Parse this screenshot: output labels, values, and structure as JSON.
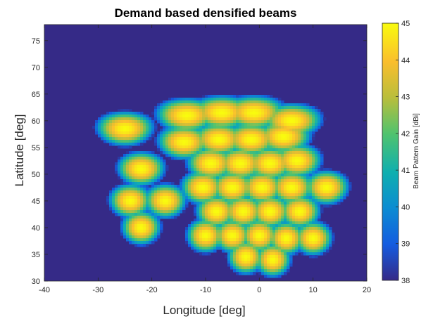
{
  "chart_data": {
    "type": "heatmap",
    "title": "Demand based densified beams",
    "xlabel": "Longitude [deg]",
    "ylabel": "Latitude [deg]",
    "xlim": [
      -40,
      20
    ],
    "ylim": [
      30,
      78
    ],
    "xticks": [
      -40,
      -30,
      -20,
      -10,
      0,
      10,
      20
    ],
    "yticks": [
      30,
      35,
      40,
      45,
      50,
      55,
      60,
      65,
      70,
      75
    ],
    "colorbar": {
      "label": "Beam Pattern Gain [dBi]",
      "range": [
        38,
        45
      ],
      "ticks": [
        38,
        39,
        40,
        41,
        42,
        43,
        44,
        45
      ],
      "colormap": "parula"
    },
    "background_value_dBi": 38,
    "beams": [
      {
        "lon": -2.5,
        "lat": 34.5,
        "peak_dBi": 45
      },
      {
        "lon": 2.5,
        "lat": 34.0,
        "peak_dBi": 45
      },
      {
        "lon": -10.0,
        "lat": 38.5,
        "peak_dBi": 45
      },
      {
        "lon": -5.0,
        "lat": 38.5,
        "peak_dBi": 45
      },
      {
        "lon": 0.0,
        "lat": 38.5,
        "peak_dBi": 45
      },
      {
        "lon": 5.0,
        "lat": 38.0,
        "peak_dBi": 45
      },
      {
        "lon": 10.0,
        "lat": 38.0,
        "peak_dBi": 45
      },
      {
        "lon": -22.0,
        "lat": 40.0,
        "peak_dBi": 45
      },
      {
        "lon": -8.0,
        "lat": 43.0,
        "peak_dBi": 45
      },
      {
        "lon": -3.0,
        "lat": 43.0,
        "peak_dBi": 45
      },
      {
        "lon": 2.0,
        "lat": 43.0,
        "peak_dBi": 45
      },
      {
        "lon": 7.5,
        "lat": 43.0,
        "peak_dBi": 45
      },
      {
        "lon": -24.0,
        "lat": 45.0,
        "peak_dBi": 45
      },
      {
        "lon": -17.5,
        "lat": 45.0,
        "peak_dBi": 45
      },
      {
        "lon": -10.5,
        "lat": 47.5,
        "peak_dBi": 45
      },
      {
        "lon": -5.0,
        "lat": 47.5,
        "peak_dBi": 45
      },
      {
        "lon": 0.5,
        "lat": 47.5,
        "peak_dBi": 45
      },
      {
        "lon": 6.0,
        "lat": 47.5,
        "peak_dBi": 45
      },
      {
        "lon": 12.5,
        "lat": 47.5,
        "peak_dBi": 45
      },
      {
        "lon": -22.0,
        "lat": 51.0,
        "peak_dBi": 45
      },
      {
        "lon": -9.0,
        "lat": 52.0,
        "peak_dBi": 45
      },
      {
        "lon": -3.5,
        "lat": 52.0,
        "peak_dBi": 45
      },
      {
        "lon": 2.0,
        "lat": 52.0,
        "peak_dBi": 45
      },
      {
        "lon": 7.0,
        "lat": 52.5,
        "peak_dBi": 45
      },
      {
        "lon": -14.0,
        "lat": 56.0,
        "peak_dBi": 45
      },
      {
        "lon": -7.5,
        "lat": 56.5,
        "peak_dBi": 45
      },
      {
        "lon": -1.5,
        "lat": 56.5,
        "peak_dBi": 45
      },
      {
        "lon": 4.5,
        "lat": 57.0,
        "peak_dBi": 45
      },
      {
        "lon": -25.0,
        "lat": 58.5,
        "peak_dBi": 45
      },
      {
        "lon": -13.5,
        "lat": 61.0,
        "peak_dBi": 45
      },
      {
        "lon": -7.0,
        "lat": 61.5,
        "peak_dBi": 45
      },
      {
        "lon": -1.0,
        "lat": 61.5,
        "peak_dBi": 45
      },
      {
        "lon": 6.0,
        "lat": 60.0,
        "peak_dBi": 45
      }
    ]
  }
}
